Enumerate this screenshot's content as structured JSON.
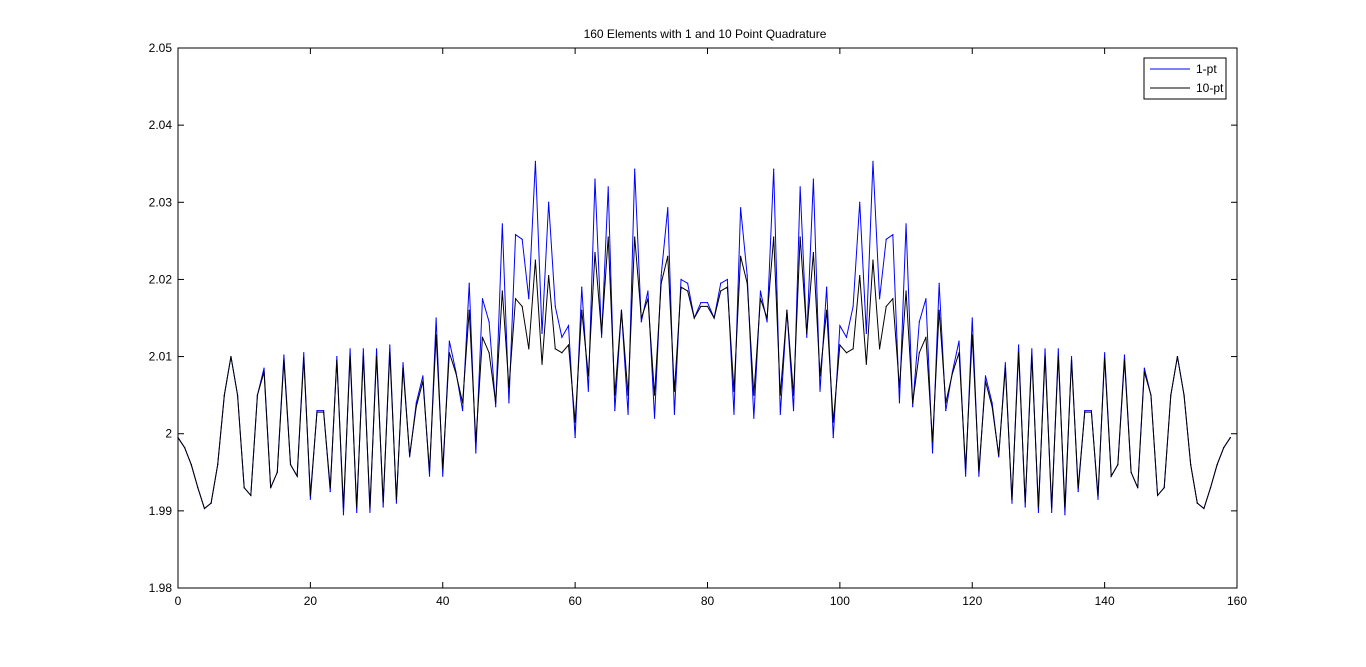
{
  "chart_data": {
    "type": "line",
    "title": "160 Elements with 1 and 10 Point Quadrature",
    "xlabel": "",
    "ylabel": "",
    "xlim": [
      0,
      160
    ],
    "ylim": [
      1.98,
      2.05
    ],
    "xticks": [
      0,
      20,
      40,
      60,
      80,
      100,
      120,
      140,
      160
    ],
    "xtick_labels": [
      "0",
      "20",
      "40",
      "60",
      "80",
      "100",
      "120",
      "140",
      "160"
    ],
    "yticks": [
      1.98,
      1.99,
      2,
      2.01,
      2.02,
      2.03,
      2.04,
      2.05
    ],
    "ytick_labels": [
      "1.98",
      "1.99",
      "2",
      "2.01",
      "2.02",
      "2.03",
      "2.04",
      "2.05"
    ],
    "grid": false,
    "legend_position": "top-right",
    "x_step": 1,
    "series": [
      {
        "name": "1-pt",
        "color": "#0000ff",
        "values": [
          1.9995,
          1.9982,
          1.996,
          1.993,
          1.9903,
          1.991,
          1.996,
          2.005,
          2.01,
          2.005,
          1.993,
          1.992,
          2.005,
          2.0085,
          1.993,
          1.995,
          2.0102,
          1.996,
          1.9945,
          2.0105,
          1.9915,
          2.003,
          2.003,
          1.9925,
          2.01,
          1.9895,
          2.011,
          1.9898,
          2.011,
          1.9898,
          2.011,
          1.9905,
          2.0115,
          1.991,
          2.0092,
          1.997,
          2.004,
          2.0075,
          1.9945,
          2.015,
          1.9945,
          2.012,
          2.008,
          2.003,
          2.0195,
          1.9975,
          2.0175,
          2.0145,
          2.0035,
          2.0272,
          2.004,
          2.0258,
          2.0252,
          2.0175,
          2.0353,
          2.013,
          2.03,
          2.0165,
          2.0125,
          2.014,
          1.9995,
          2.019,
          2.0055,
          2.033,
          2.0125,
          2.032,
          2.003,
          2.016,
          2.0025,
          2.0343,
          2.0145,
          2.0185,
          2.002,
          2.0205,
          2.0293,
          2.0025,
          2.02,
          2.0195,
          2.015,
          2.017,
          2.017,
          2.015,
          2.0195,
          2.02,
          2.0025,
          2.0293,
          2.0205,
          2.002,
          2.0185,
          2.0145,
          2.0343,
          2.0025,
          2.016,
          2.003,
          2.032,
          2.0125,
          2.033,
          2.0055,
          2.019,
          1.9995,
          2.014,
          2.0125,
          2.0165,
          2.03,
          2.013,
          2.0353,
          2.0175,
          2.0252,
          2.0258,
          2.004,
          2.0272,
          2.0035,
          2.0145,
          2.0175,
          1.9975,
          2.0195,
          2.003,
          2.008,
          2.012,
          1.9945,
          2.015,
          1.9945,
          2.0075,
          2.004,
          1.997,
          2.0092,
          1.991,
          2.0115,
          1.9905,
          2.011,
          1.9898,
          2.011,
          1.9898,
          2.011,
          1.9895,
          2.01,
          1.9925,
          2.003,
          2.003,
          1.9915,
          2.0105,
          1.9945,
          1.996,
          2.0102,
          1.995,
          1.993,
          2.0085,
          2.005,
          1.992,
          1.993,
          2.005,
          2.01,
          2.005,
          1.996,
          1.991,
          1.9903,
          1.993,
          1.996,
          1.9982,
          1.9995
        ]
      },
      {
        "name": "10-pt",
        "color": "#000000",
        "values": [
          1.9995,
          1.9982,
          1.996,
          1.993,
          1.9903,
          1.991,
          1.996,
          2.005,
          2.01,
          2.005,
          1.993,
          1.992,
          2.005,
          2.008,
          1.993,
          1.995,
          2.0095,
          1.996,
          1.9945,
          2.0098,
          1.992,
          2.0028,
          2.0028,
          1.993,
          2.0095,
          1.9905,
          2.01,
          1.9905,
          2.01,
          1.9905,
          2.01,
          1.9912,
          2.0105,
          1.9915,
          2.0085,
          1.9972,
          2.0035,
          2.0068,
          1.9952,
          2.0128,
          1.9955,
          2.0105,
          2.0078,
          2.004,
          2.016,
          1.999,
          2.0125,
          2.0105,
          2.004,
          2.0185,
          2.006,
          2.0175,
          2.0165,
          2.011,
          2.0225,
          2.009,
          2.0205,
          2.011,
          2.0105,
          2.0115,
          2.0015,
          2.016,
          2.0075,
          2.0235,
          2.013,
          2.0255,
          2.005,
          2.016,
          2.005,
          2.0255,
          2.015,
          2.0175,
          2.005,
          2.0195,
          2.023,
          2.0055,
          2.019,
          2.0185,
          2.015,
          2.0165,
          2.0165,
          2.015,
          2.0185,
          2.019,
          2.0055,
          2.023,
          2.0195,
          2.005,
          2.0175,
          2.015,
          2.0255,
          2.005,
          2.016,
          2.005,
          2.0255,
          2.013,
          2.0235,
          2.0075,
          2.016,
          2.0015,
          2.0115,
          2.0105,
          2.011,
          2.0205,
          2.009,
          2.0225,
          2.011,
          2.0165,
          2.0175,
          2.006,
          2.0185,
          2.004,
          2.0105,
          2.0125,
          1.999,
          2.016,
          2.004,
          2.0078,
          2.0105,
          1.9955,
          2.0128,
          1.9952,
          2.0068,
          2.0035,
          1.9972,
          2.0085,
          1.9915,
          2.0105,
          1.9912,
          2.01,
          1.9905,
          2.01,
          1.9905,
          2.01,
          1.9905,
          2.0095,
          1.993,
          2.0028,
          2.0028,
          1.992,
          2.0098,
          1.9945,
          1.996,
          2.0095,
          1.995,
          1.993,
          2.008,
          2.005,
          1.992,
          1.993,
          2.005,
          2.01,
          2.005,
          1.996,
          1.991,
          1.9903,
          1.993,
          1.996,
          1.9982,
          1.9995
        ]
      }
    ]
  }
}
